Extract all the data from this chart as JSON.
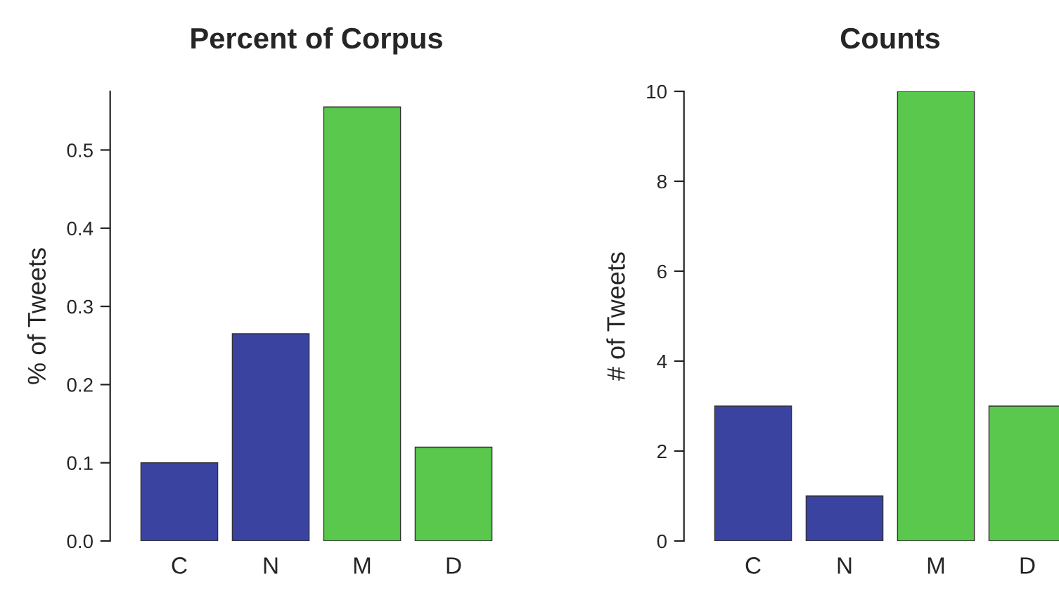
{
  "chart_data": [
    {
      "type": "bar",
      "title": "Percent of Corpus",
      "ylabel": "% of Tweets",
      "categories": [
        "C",
        "N",
        "M",
        "D"
      ],
      "values": [
        0.1,
        0.265,
        0.555,
        0.12
      ],
      "colors": [
        "#3a43a0",
        "#3a43a0",
        "#5ac74d",
        "#5ac74d"
      ],
      "ylim": [
        0,
        0.575
      ],
      "yticks": [
        {
          "value": 0,
          "label": "0.0"
        },
        0.1,
        0.2,
        0.3,
        0.4,
        0.5
      ],
      "grid": false
    },
    {
      "type": "bar",
      "title": "Counts",
      "ylabel": "# of Tweets",
      "categories": [
        "C",
        "N",
        "M",
        "D"
      ],
      "values": [
        3,
        1,
        10,
        3
      ],
      "colors": [
        "#3a43a0",
        "#3a43a0",
        "#5ac74d",
        "#5ac74d"
      ],
      "ylim": [
        0,
        10
      ],
      "yticks": [
        0,
        2,
        4,
        6,
        8,
        10
      ],
      "grid": false
    }
  ]
}
